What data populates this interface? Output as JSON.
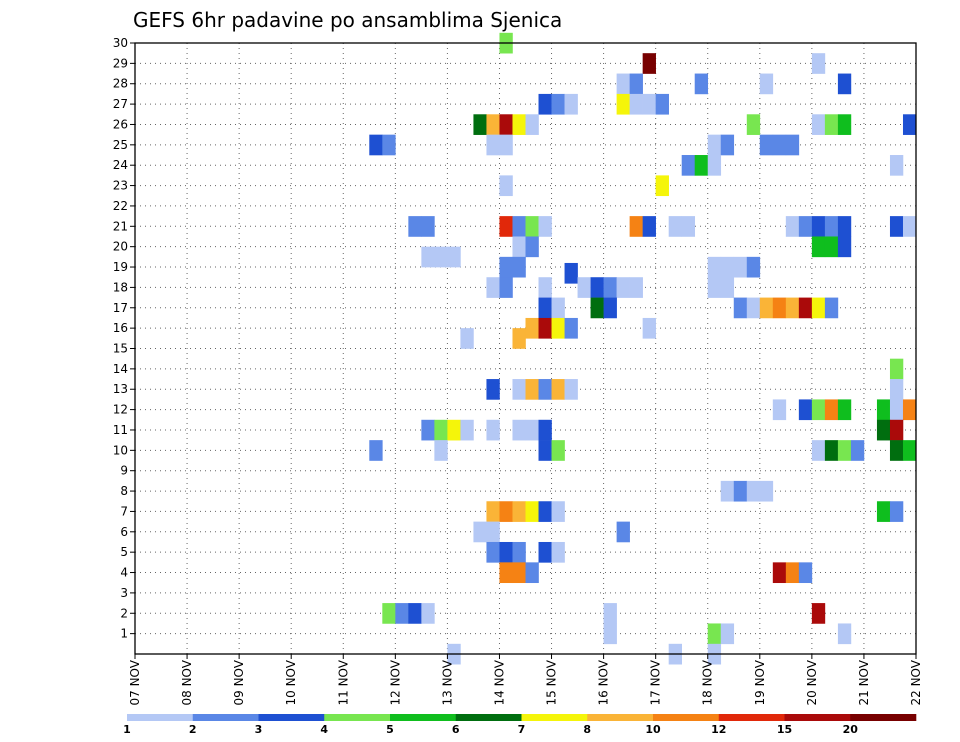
{
  "chart_data": {
    "type": "heatmap",
    "title": "GEFS 6hr padavine po ansamblima Sjenica",
    "xlabel": "",
    "ylabel": "",
    "x_ticks": [
      "07 NOV",
      "08 NOV",
      "09 NOV",
      "10 NOV",
      "11 NOV",
      "12 NOV",
      "13 NOV",
      "14 NOV",
      "15 NOV",
      "16 NOV",
      "17 NOV",
      "18 NOV",
      "19 NOV",
      "20 NOV",
      "21 NOV",
      "22 NOV"
    ],
    "y_ticks": [
      "1",
      "2",
      "3",
      "4",
      "5",
      "6",
      "7",
      "8",
      "9",
      "10",
      "11",
      "12",
      "13",
      "14",
      "15",
      "16",
      "17",
      "18",
      "19",
      "20",
      "21",
      "22",
      "23",
      "24",
      "25",
      "26",
      "27",
      "28",
      "29",
      "30"
    ],
    "xlim": [
      0,
      60
    ],
    "ylim": [
      0,
      30
    ],
    "grid": true,
    "colorbar": {
      "position": "bottom",
      "labels": [
        "1",
        "2",
        "3",
        "4",
        "5",
        "6",
        "7",
        "8",
        "10",
        "12",
        "15",
        "20"
      ],
      "colors": [
        "#b4c8f5",
        "#5a87e6",
        "#1e50d2",
        "#78e650",
        "#0fbe1e",
        "#006e0f",
        "#f5f50a",
        "#fab437",
        "#f58214",
        "#e1280a",
        "#aa0a0a",
        "#780000"
      ]
    },
    "cells": [
      {
        "x": 28.5,
        "y": 30,
        "c": 4
      },
      {
        "x": 39.5,
        "y": 29,
        "c": 12
      },
      {
        "x": 52.5,
        "y": 29,
        "c": 1
      },
      {
        "x": 37.5,
        "y": 28,
        "c": 1
      },
      {
        "x": 38.5,
        "y": 28,
        "c": 2
      },
      {
        "x": 43.5,
        "y": 28,
        "c": 2
      },
      {
        "x": 48.5,
        "y": 28,
        "c": 1
      },
      {
        "x": 54.5,
        "y": 28,
        "c": 3
      },
      {
        "x": 31.5,
        "y": 27,
        "c": 3
      },
      {
        "x": 32.5,
        "y": 27,
        "c": 2
      },
      {
        "x": 33.5,
        "y": 27,
        "c": 1
      },
      {
        "x": 37.5,
        "y": 27,
        "c": 7
      },
      {
        "x": 38.5,
        "y": 27,
        "c": 1
      },
      {
        "x": 39.5,
        "y": 27,
        "c": 1
      },
      {
        "x": 40.5,
        "y": 27,
        "c": 2
      },
      {
        "x": 26.5,
        "y": 26,
        "c": 6
      },
      {
        "x": 27.5,
        "y": 26,
        "c": 8
      },
      {
        "x": 28.5,
        "y": 26,
        "c": 11
      },
      {
        "x": 29.5,
        "y": 26,
        "c": 7
      },
      {
        "x": 30.5,
        "y": 26,
        "c": 1
      },
      {
        "x": 47.5,
        "y": 26,
        "c": 4
      },
      {
        "x": 52.5,
        "y": 26,
        "c": 1
      },
      {
        "x": 53.5,
        "y": 26,
        "c": 4
      },
      {
        "x": 54.5,
        "y": 26,
        "c": 5
      },
      {
        "x": 59.5,
        "y": 26,
        "c": 3
      },
      {
        "x": 18.5,
        "y": 25,
        "c": 3
      },
      {
        "x": 19.5,
        "y": 25,
        "c": 2
      },
      {
        "x": 27.5,
        "y": 25,
        "c": 1
      },
      {
        "x": 28.5,
        "y": 25,
        "c": 1
      },
      {
        "x": 44.5,
        "y": 25,
        "c": 1
      },
      {
        "x": 45.5,
        "y": 25,
        "c": 2
      },
      {
        "x": 48.5,
        "y": 25,
        "c": 2
      },
      {
        "x": 49.5,
        "y": 25,
        "c": 2
      },
      {
        "x": 50.5,
        "y": 25,
        "c": 2
      },
      {
        "x": 42.5,
        "y": 24,
        "c": 2
      },
      {
        "x": 43.5,
        "y": 24,
        "c": 5
      },
      {
        "x": 44.5,
        "y": 24,
        "c": 1
      },
      {
        "x": 58.5,
        "y": 24,
        "c": 1
      },
      {
        "x": 28.5,
        "y": 23,
        "c": 1
      },
      {
        "x": 40.5,
        "y": 23,
        "c": 7
      },
      {
        "x": 21.5,
        "y": 21,
        "c": 2
      },
      {
        "x": 22.5,
        "y": 21,
        "c": 2
      },
      {
        "x": 28.5,
        "y": 21,
        "c": 10
      },
      {
        "x": 29.5,
        "y": 21,
        "c": 2
      },
      {
        "x": 30.5,
        "y": 21,
        "c": 4
      },
      {
        "x": 31.5,
        "y": 21,
        "c": 1
      },
      {
        "x": 38.5,
        "y": 21,
        "c": 9
      },
      {
        "x": 39.5,
        "y": 21,
        "c": 3
      },
      {
        "x": 41.5,
        "y": 21,
        "c": 1
      },
      {
        "x": 42.5,
        "y": 21,
        "c": 1
      },
      {
        "x": 50.5,
        "y": 21,
        "c": 1
      },
      {
        "x": 51.5,
        "y": 21,
        "c": 2
      },
      {
        "x": 52.5,
        "y": 21,
        "c": 3
      },
      {
        "x": 53.5,
        "y": 21,
        "c": 2
      },
      {
        "x": 54.5,
        "y": 21,
        "c": 3
      },
      {
        "x": 58.5,
        "y": 21,
        "c": 3
      },
      {
        "x": 59.5,
        "y": 21,
        "c": 1
      },
      {
        "x": 29.5,
        "y": 20,
        "c": 1
      },
      {
        "x": 30.5,
        "y": 20,
        "c": 2
      },
      {
        "x": 52.5,
        "y": 20,
        "c": 5
      },
      {
        "x": 53.5,
        "y": 20,
        "c": 5
      },
      {
        "x": 54.5,
        "y": 20,
        "c": 3
      },
      {
        "x": 22.5,
        "y": 19.5,
        "c": 1
      },
      {
        "x": 23.5,
        "y": 19.5,
        "c": 1
      },
      {
        "x": 24.5,
        "y": 19.5,
        "c": 1
      },
      {
        "x": 28.5,
        "y": 19,
        "c": 2
      },
      {
        "x": 29.5,
        "y": 19,
        "c": 2
      },
      {
        "x": 33.5,
        "y": 18.7,
        "c": 3
      },
      {
        "x": 44.5,
        "y": 19,
        "c": 1
      },
      {
        "x": 45.5,
        "y": 19,
        "c": 1
      },
      {
        "x": 46.5,
        "y": 19,
        "c": 1
      },
      {
        "x": 47.5,
        "y": 19,
        "c": 2
      },
      {
        "x": 27.5,
        "y": 18,
        "c": 1
      },
      {
        "x": 28.5,
        "y": 18,
        "c": 2
      },
      {
        "x": 31.5,
        "y": 18,
        "c": 1
      },
      {
        "x": 34.5,
        "y": 18,
        "c": 1
      },
      {
        "x": 35.5,
        "y": 18,
        "c": 3
      },
      {
        "x": 36.5,
        "y": 18,
        "c": 2
      },
      {
        "x": 37.5,
        "y": 18,
        "c": 1
      },
      {
        "x": 38.5,
        "y": 18,
        "c": 1
      },
      {
        "x": 44.5,
        "y": 18,
        "c": 1
      },
      {
        "x": 45.5,
        "y": 18,
        "c": 1
      },
      {
        "x": 31.5,
        "y": 17,
        "c": 3
      },
      {
        "x": 32.5,
        "y": 17,
        "c": 1
      },
      {
        "x": 35.5,
        "y": 17,
        "c": 6
      },
      {
        "x": 36.5,
        "y": 17,
        "c": 3
      },
      {
        "x": 46.5,
        "y": 17,
        "c": 2
      },
      {
        "x": 47.5,
        "y": 17,
        "c": 1
      },
      {
        "x": 48.5,
        "y": 17,
        "c": 8
      },
      {
        "x": 49.5,
        "y": 17,
        "c": 9
      },
      {
        "x": 50.5,
        "y": 17,
        "c": 8
      },
      {
        "x": 51.5,
        "y": 17,
        "c": 11
      },
      {
        "x": 52.5,
        "y": 17,
        "c": 7
      },
      {
        "x": 53.5,
        "y": 17,
        "c": 2
      },
      {
        "x": 30.5,
        "y": 16,
        "c": 8
      },
      {
        "x": 31.5,
        "y": 16,
        "c": 11
      },
      {
        "x": 32.5,
        "y": 16,
        "c": 7
      },
      {
        "x": 33.5,
        "y": 16,
        "c": 2
      },
      {
        "x": 39.5,
        "y": 16,
        "c": 1
      },
      {
        "x": 25.5,
        "y": 15.5,
        "c": 1
      },
      {
        "x": 29.5,
        "y": 15.5,
        "c": 8
      },
      {
        "x": 27.5,
        "y": 13,
        "c": 3
      },
      {
        "x": 29.5,
        "y": 13,
        "c": 1
      },
      {
        "x": 30.5,
        "y": 13,
        "c": 8
      },
      {
        "x": 31.5,
        "y": 13,
        "c": 2
      },
      {
        "x": 32.5,
        "y": 13,
        "c": 8
      },
      {
        "x": 33.5,
        "y": 13,
        "c": 1
      },
      {
        "x": 58.5,
        "y": 14,
        "c": 4
      },
      {
        "x": 58.5,
        "y": 13,
        "c": 1
      },
      {
        "x": 49.5,
        "y": 12,
        "c": 1
      },
      {
        "x": 51.5,
        "y": 12,
        "c": 3
      },
      {
        "x": 52.5,
        "y": 12,
        "c": 4
      },
      {
        "x": 53.5,
        "y": 12,
        "c": 9
      },
      {
        "x": 54.5,
        "y": 12,
        "c": 5
      },
      {
        "x": 57.5,
        "y": 12,
        "c": 5
      },
      {
        "x": 58.5,
        "y": 12,
        "c": 1
      },
      {
        "x": 59.5,
        "y": 12,
        "c": 9
      },
      {
        "x": 22.5,
        "y": 11,
        "c": 2
      },
      {
        "x": 23.5,
        "y": 11,
        "c": 4
      },
      {
        "x": 24.5,
        "y": 11,
        "c": 7
      },
      {
        "x": 25.5,
        "y": 11,
        "c": 1
      },
      {
        "x": 27.5,
        "y": 11,
        "c": 1
      },
      {
        "x": 29.5,
        "y": 11,
        "c": 1
      },
      {
        "x": 30.5,
        "y": 11,
        "c": 1
      },
      {
        "x": 31.5,
        "y": 11,
        "c": 3
      },
      {
        "x": 57.5,
        "y": 11,
        "c": 6
      },
      {
        "x": 58.5,
        "y": 11,
        "c": 11
      },
      {
        "x": 18.5,
        "y": 10,
        "c": 2
      },
      {
        "x": 23.5,
        "y": 10,
        "c": 1
      },
      {
        "x": 31.5,
        "y": 10,
        "c": 3
      },
      {
        "x": 32.5,
        "y": 10,
        "c": 4
      },
      {
        "x": 52.5,
        "y": 10,
        "c": 1
      },
      {
        "x": 53.5,
        "y": 10,
        "c": 6
      },
      {
        "x": 54.5,
        "y": 10,
        "c": 4
      },
      {
        "x": 55.5,
        "y": 10,
        "c": 2
      },
      {
        "x": 58.5,
        "y": 10,
        "c": 6
      },
      {
        "x": 59.5,
        "y": 10,
        "c": 5
      },
      {
        "x": 45.5,
        "y": 8,
        "c": 1
      },
      {
        "x": 46.5,
        "y": 8,
        "c": 2
      },
      {
        "x": 47.5,
        "y": 8,
        "c": 1
      },
      {
        "x": 48.5,
        "y": 8,
        "c": 1
      },
      {
        "x": 27.5,
        "y": 7,
        "c": 8
      },
      {
        "x": 28.5,
        "y": 7,
        "c": 9
      },
      {
        "x": 29.5,
        "y": 7,
        "c": 8
      },
      {
        "x": 30.5,
        "y": 7,
        "c": 7
      },
      {
        "x": 31.5,
        "y": 7,
        "c": 3
      },
      {
        "x": 32.5,
        "y": 7,
        "c": 1
      },
      {
        "x": 57.5,
        "y": 7,
        "c": 5
      },
      {
        "x": 58.5,
        "y": 7,
        "c": 2
      },
      {
        "x": 26.5,
        "y": 6,
        "c": 1
      },
      {
        "x": 27.5,
        "y": 6,
        "c": 1
      },
      {
        "x": 37.5,
        "y": 6,
        "c": 2
      },
      {
        "x": 27.5,
        "y": 5,
        "c": 2
      },
      {
        "x": 28.5,
        "y": 5,
        "c": 3
      },
      {
        "x": 29.5,
        "y": 5,
        "c": 2
      },
      {
        "x": 31.5,
        "y": 5,
        "c": 3
      },
      {
        "x": 32.5,
        "y": 5,
        "c": 1
      },
      {
        "x": 28.5,
        "y": 4,
        "c": 9
      },
      {
        "x": 29.5,
        "y": 4,
        "c": 9
      },
      {
        "x": 30.5,
        "y": 4,
        "c": 2
      },
      {
        "x": 49.5,
        "y": 4,
        "c": 11
      },
      {
        "x": 50.5,
        "y": 4,
        "c": 9
      },
      {
        "x": 51.5,
        "y": 4,
        "c": 2
      },
      {
        "x": 19.5,
        "y": 2,
        "c": 4
      },
      {
        "x": 20.5,
        "y": 2,
        "c": 2
      },
      {
        "x": 21.5,
        "y": 2,
        "c": 3
      },
      {
        "x": 22.5,
        "y": 2,
        "c": 1
      },
      {
        "x": 36.5,
        "y": 2,
        "c": 1
      },
      {
        "x": 52.5,
        "y": 2,
        "c": 11
      },
      {
        "x": 36.5,
        "y": 1,
        "c": 1
      },
      {
        "x": 44.5,
        "y": 1,
        "c": 4
      },
      {
        "x": 45.5,
        "y": 1,
        "c": 1
      },
      {
        "x": 54.5,
        "y": 1,
        "c": 1
      },
      {
        "x": 24.5,
        "y": 0,
        "c": 1
      },
      {
        "x": 41.5,
        "y": 0,
        "c": 1
      },
      {
        "x": 44.5,
        "y": 0,
        "c": 1
      }
    ]
  }
}
